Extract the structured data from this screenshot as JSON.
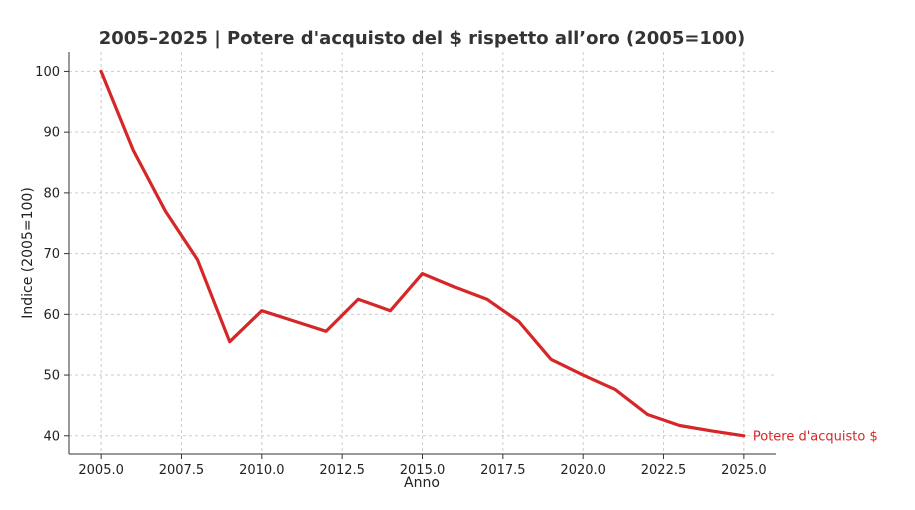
{
  "chart_data": {
    "type": "line",
    "title": "2005–2025 | Potere d'acquisto del $ rispetto all’oro (2005=100)",
    "xlabel": "Anno",
    "ylabel": "Indice (2005=100)",
    "xlim": [
      2004.0,
      2026.0
    ],
    "ylim": [
      37.0,
      103.2
    ],
    "x_ticks": [
      2005.0,
      2007.5,
      2010.0,
      2012.5,
      2015.0,
      2017.5,
      2020.0,
      2022.5,
      2025.0
    ],
    "x_tick_labels": [
      "2005.0",
      "2007.5",
      "2010.0",
      "2012.5",
      "2015.0",
      "2017.5",
      "2020.0",
      "2022.5",
      "2025.0"
    ],
    "y_ticks": [
      40,
      50,
      60,
      70,
      80,
      90,
      100
    ],
    "y_tick_labels": [
      "40",
      "50",
      "60",
      "70",
      "80",
      "90",
      "100"
    ],
    "grid": true,
    "series": [
      {
        "name": "Potere d'acquisto $",
        "color": "#d62728",
        "x": [
          2005,
          2006,
          2007,
          2008,
          2009,
          2010,
          2011,
          2012,
          2013,
          2014,
          2015,
          2016,
          2017,
          2018,
          2019,
          2020,
          2021,
          2022,
          2023,
          2024,
          2025
        ],
        "y": [
          100,
          87,
          77,
          69,
          55.5,
          60.6,
          58.9,
          57.2,
          62.5,
          60.6,
          66.7,
          64.5,
          62.5,
          58.8,
          52.6,
          50.0,
          47.6,
          43.5,
          41.7,
          40.8,
          40.0
        ]
      }
    ]
  }
}
